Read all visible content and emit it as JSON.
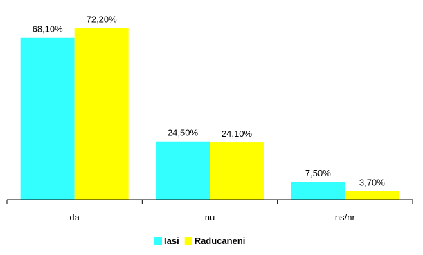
{
  "chart_data": {
    "type": "bar",
    "categories": [
      "da",
      "nu",
      "ns/nr"
    ],
    "series": [
      {
        "name": "Iasi",
        "values": [
          68.1,
          24.5,
          7.5
        ],
        "labels": [
          "68,10%",
          "24,50%",
          "7,50%"
        ],
        "color": "#33FFFF"
      },
      {
        "name": "Raducaneni",
        "values": [
          72.2,
          24.1,
          3.7
        ],
        "labels": [
          "72,20%",
          "24,10%",
          "3,70%"
        ],
        "color": "#FFFF00"
      }
    ],
    "ylim": [
      0,
      80
    ],
    "grid": false,
    "legend": "bottom"
  }
}
